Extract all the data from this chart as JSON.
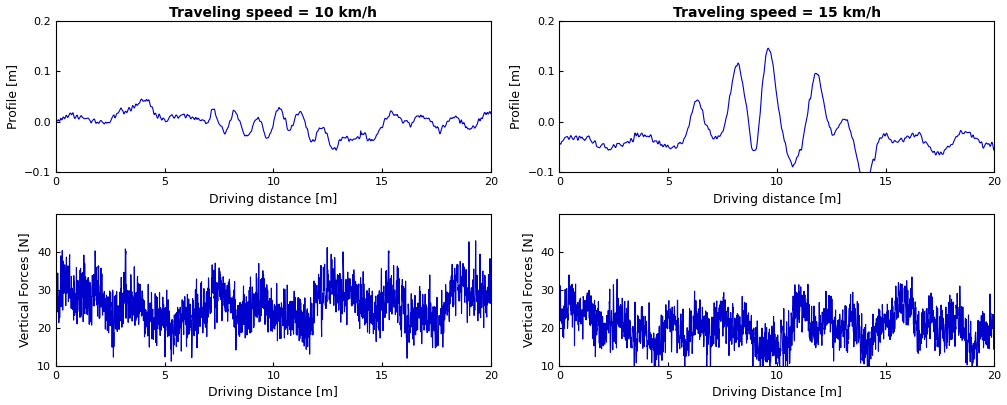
{
  "title_left": "Traveling speed = 10 km/h",
  "title_right": "Traveling speed = 15 km/h",
  "xlabel_profile": "Driving distance [m]",
  "xlabel_force": "Driving Distance [m]",
  "ylabel_profile": "Profile [m]",
  "ylabel_force": "Vertical Forces [N]",
  "x_max": 20,
  "profile_ylim": [
    -0.1,
    0.2
  ],
  "profile_yticks": [
    -0.1,
    0,
    0.1,
    0.2
  ],
  "force_ylim": [
    10,
    50
  ],
  "force_yticks": [
    10,
    20,
    30,
    40
  ],
  "line_color": "#0000CC",
  "line_width": 0.8,
  "n_points_profile": 1000,
  "n_points_force": 2000,
  "bg_color": "white",
  "axes_bg": "#f0f0f0",
  "title_fontsize": 10,
  "label_fontsize": 9,
  "tick_fontsize": 8
}
